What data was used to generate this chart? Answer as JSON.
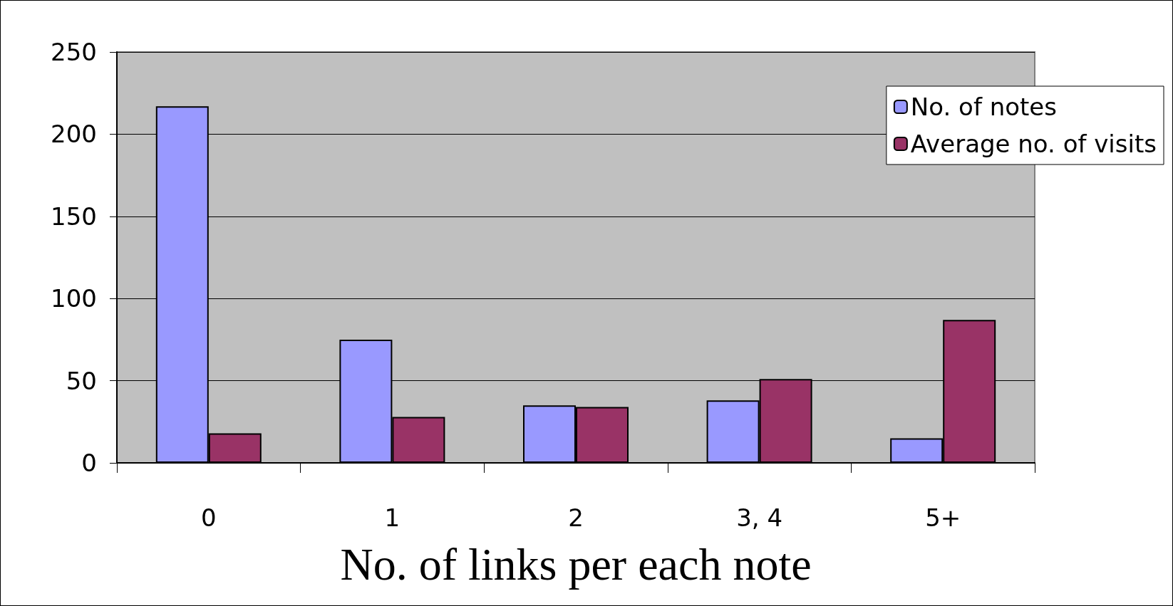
{
  "chart_data": {
    "type": "bar",
    "xlabel": "No. of links per each note",
    "categories": [
      "0",
      "1",
      "2",
      "3, 4",
      "5+"
    ],
    "series": [
      {
        "name": "No. of notes",
        "color": "#9999ff",
        "values": [
          217,
          75,
          35,
          38,
          15
        ]
      },
      {
        "name": "Average no. of visits",
        "color": "#993366",
        "values": [
          18,
          28,
          34,
          51,
          87
        ]
      }
    ],
    "ylim": [
      0,
      250
    ],
    "yticks": [
      0,
      50,
      100,
      150,
      200,
      250
    ],
    "grid": "y",
    "legend": "top right"
  }
}
